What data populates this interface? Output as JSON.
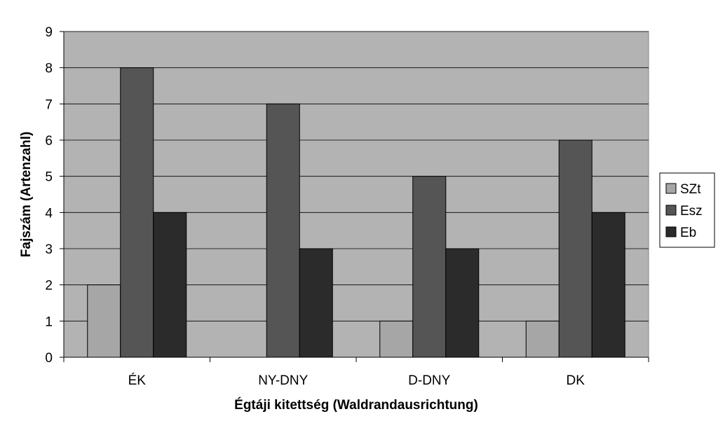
{
  "chart_data": {
    "type": "bar",
    "categories": [
      "ÉK",
      "NY-DNY",
      "D-DNY",
      "DK"
    ],
    "series": [
      {
        "name": "SZt",
        "values": [
          2,
          0,
          1,
          1
        ],
        "color": "#a6a6a6"
      },
      {
        "name": "Esz",
        "values": [
          8,
          7,
          5,
          6
        ],
        "color": "#555555"
      },
      {
        "name": "Eb",
        "values": [
          4,
          3,
          3,
          4
        ],
        "color": "#2b2b2b"
      }
    ],
    "title": "",
    "xlabel": "Égtáji kitettség (Waldrandausrichtung)",
    "ylabel": "Fajszám (Artenzahl)",
    "ylim": [
      0,
      9
    ],
    "yticks": [
      0,
      1,
      2,
      3,
      4,
      5,
      6,
      7,
      8,
      9
    ],
    "grid": true,
    "legend_position": "right",
    "plot_background": "#b3b3b3"
  }
}
